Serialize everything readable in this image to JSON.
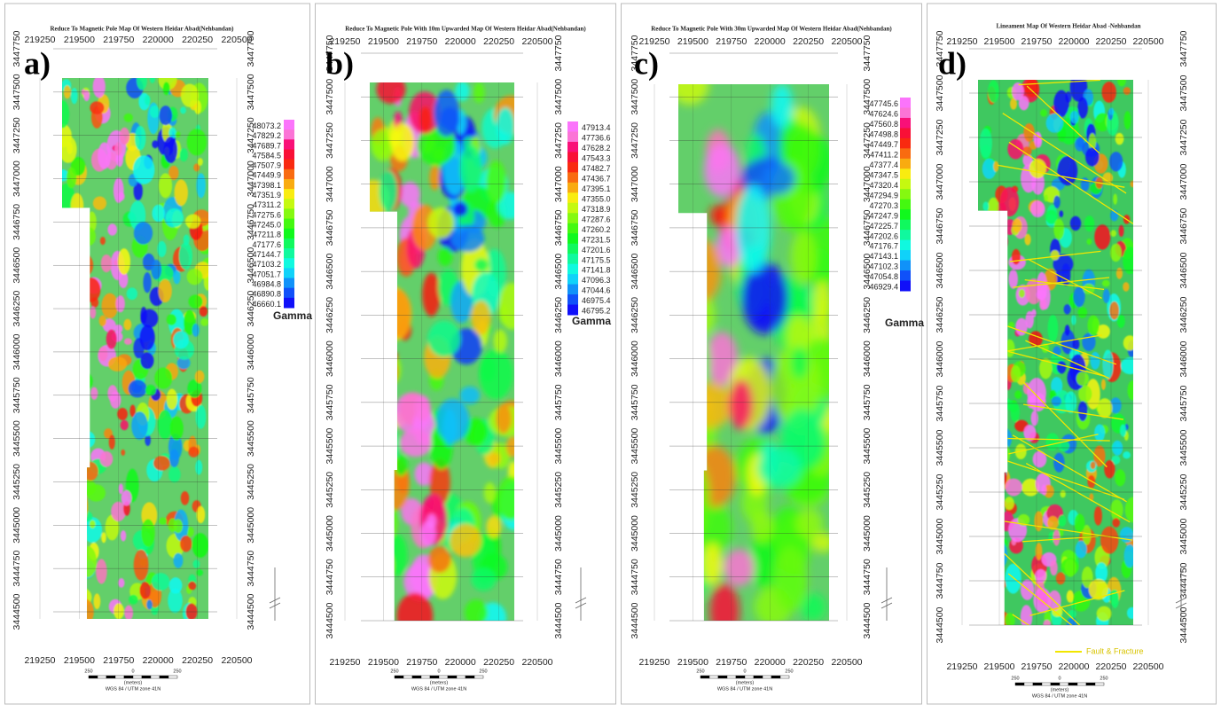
{
  "panels": [
    {
      "label": "a)",
      "title": "Reduce To Magnetic Pole  Map Of Western Heidar Abad(Nehbandan)",
      "x_ticks": [
        "219250",
        "219500",
        "219750",
        "220000",
        "220250",
        "220500"
      ],
      "y_ticks": [
        "3447750",
        "3447500",
        "3447250",
        "3447000",
        "3446750",
        "3446500",
        "3446250",
        "3446000",
        "3445750",
        "3445500",
        "3445250",
        "3445000",
        "3444750",
        "3444500"
      ],
      "legend": {
        "values": [
          "48073.2",
          "47829.2",
          "47689.7",
          "47584.5",
          "47507.9",
          "47449.9",
          "47398.1",
          "47351.9",
          "47311.2",
          "47275.6",
          "47245.0",
          "47211.8",
          "47177.6",
          "47144.7",
          "47103.2",
          "47051.7",
          "46984.8",
          "46890.8",
          "46660.1"
        ],
        "unit": "Gamma"
      },
      "scale": {
        "labels": [
          "250",
          "0",
          "250"
        ],
        "unit": "(meters)"
      },
      "projection": "WGS 84 / UTM zone 41N"
    },
    {
      "label": "b)",
      "title": "Reduce To Magnetic Pole  With 10m Upwarded Map Of Western Heidar Abad(Nehbandan)",
      "x_ticks": [
        "219250",
        "219500",
        "219750",
        "220000",
        "220250",
        "220500"
      ],
      "y_ticks": [
        "3447750",
        "3447500",
        "3447250",
        "3447000",
        "3446750",
        "3446500",
        "3446250",
        "3446000",
        "3445750",
        "3445500",
        "3445250",
        "3445000",
        "3444750",
        "3444500"
      ],
      "legend": {
        "values": [
          "47913.4",
          "47736.6",
          "47628.2",
          "47543.3",
          "47482.7",
          "47436.7",
          "47395.1",
          "47355.0",
          "47318.9",
          "47287.6",
          "47260.2",
          "47231.5",
          "47201.6",
          "47175.5",
          "47141.8",
          "47096.3",
          "47044.6",
          "46975.4",
          "46795.2"
        ],
        "unit": "Gamma"
      },
      "scale": {
        "labels": [
          "250",
          "0",
          "250"
        ],
        "unit": "(meters)"
      },
      "projection": "WGS 84 / UTM zone 41N"
    },
    {
      "label": "c)",
      "title": "Reduce To Magnetic Pole  With 30m Upwarded Map Of Western Heidar Abad(Nehbandan)",
      "x_ticks": [
        "219250",
        "219500",
        "219750",
        "220000",
        "220250",
        "220500"
      ],
      "y_ticks": [
        "3447750",
        "3447500",
        "3447250",
        "3447000",
        "3446750",
        "3446500",
        "3446250",
        "3446000",
        "3445750",
        "3445500",
        "3445250",
        "3445000",
        "3444750",
        "3444500"
      ],
      "legend": {
        "values": [
          "47745.6",
          "47624.6",
          "47560.8",
          "47498.8",
          "47449.7",
          "47411.2",
          "47377.4",
          "47347.5",
          "47320.4",
          "47294.9",
          "47270.3",
          "47247.9",
          "47225.7",
          "47202.6",
          "47176.7",
          "47143.1",
          "47102.3",
          "47054.8",
          "46929.4"
        ],
        "unit": "Gamma"
      },
      "scale": {
        "labels": [
          "250",
          "0",
          "250"
        ],
        "unit": "(meters)"
      },
      "projection": "WGS 84 / UTM zone 41N"
    },
    {
      "label": "d)",
      "title": "Lineament Map Of Western Heidar Abad -Nehbandan",
      "x_ticks": [
        "219250",
        "219500",
        "219750",
        "220000",
        "220250",
        "220500"
      ],
      "y_ticks": [
        "3447750",
        "3447500",
        "3447250",
        "3447000",
        "3446750",
        "3446500",
        "3446250",
        "3446000",
        "3445750",
        "3445500",
        "3445250",
        "3445000",
        "3444750",
        "3444500"
      ],
      "fault_legend": "Fault & Fracture",
      "scale": {
        "labels": [
          "250",
          "0",
          "250"
        ],
        "unit": "(meters)"
      },
      "projection": "WGS 84 / UTM zone 41N"
    }
  ]
}
